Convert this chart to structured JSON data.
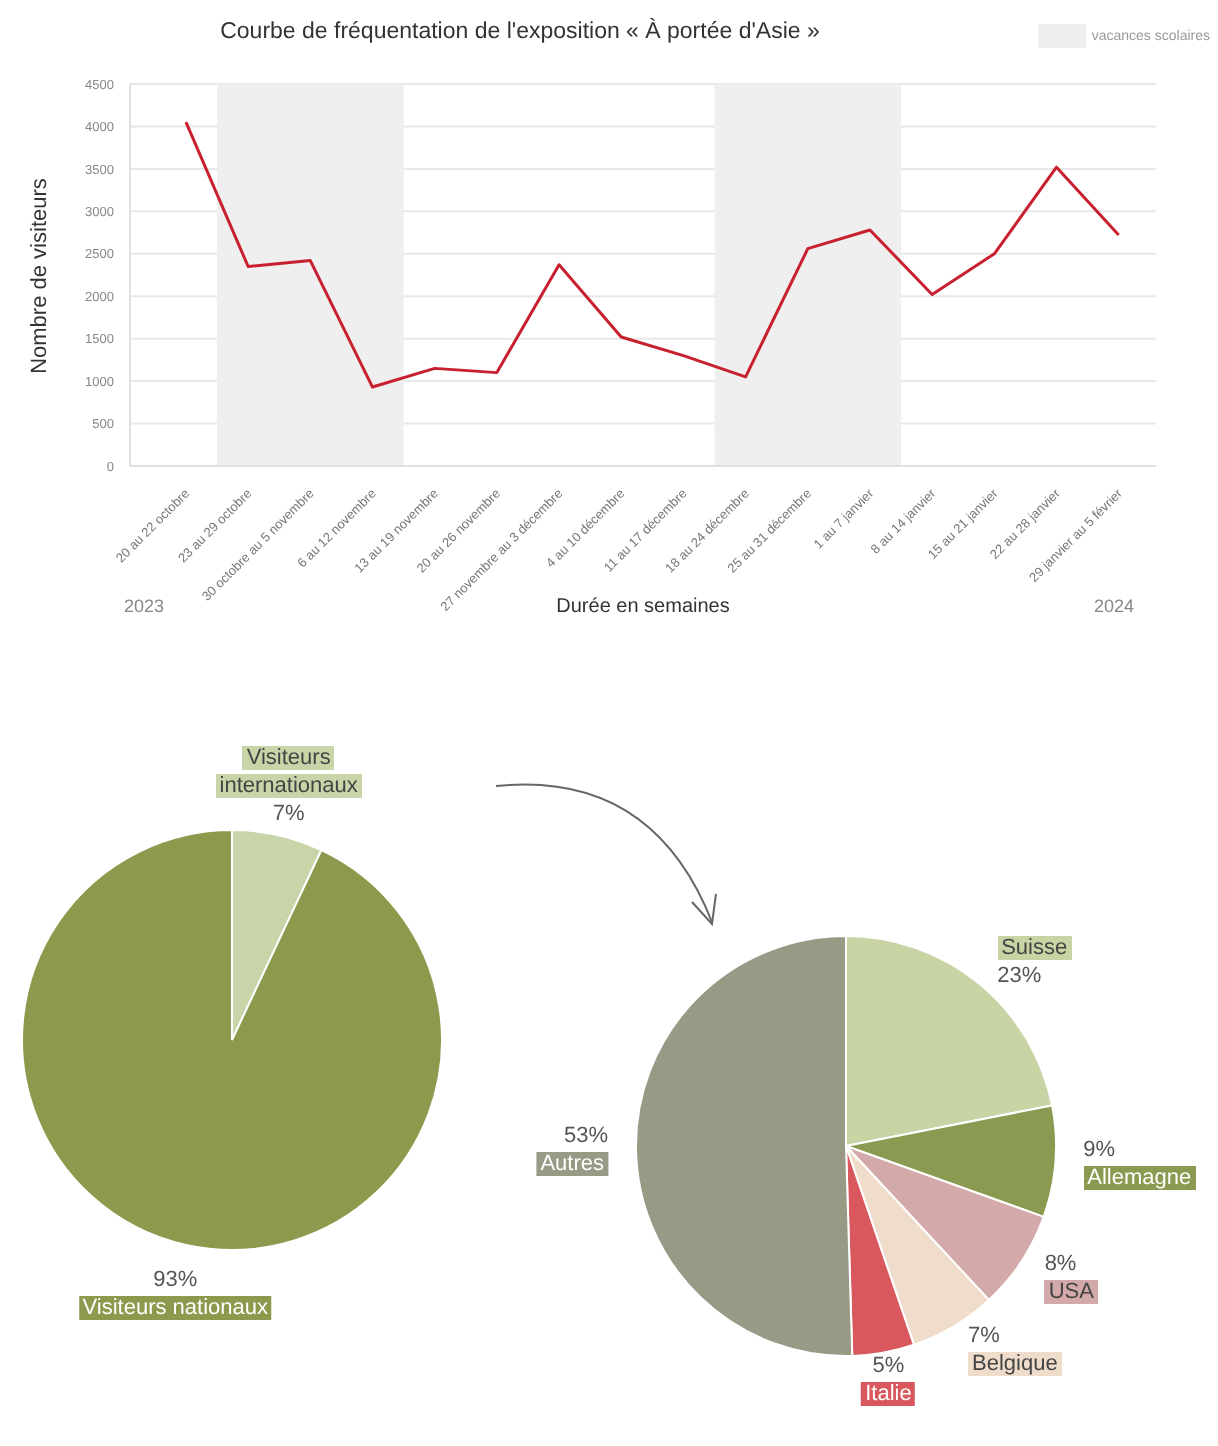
{
  "chart_data": [
    {
      "type": "line",
      "title": "Courbe de fréquentation de l'exposition « À portée d'Asie »",
      "xlabel": "Durée en semaines",
      "ylabel": "Nombre de visiteurs",
      "categories": [
        "20 au 22 octobre",
        "23 au 29 octobre",
        "30 octobre au 5 novembre",
        "6 au 12 novembre",
        "13 au 19 novembre",
        "20 au 26 novembre",
        "27 novembre au 3 décembre",
        "4 au 10 décembre",
        "11 au 17 décembre",
        "18 au 24 décembre",
        "25 au 31 décembre",
        "1 au 7 janvier",
        "8 au 14 janvier",
        "15 au 21 janvier",
        "22 au 28 janvier",
        "29 janvier au 5 février"
      ],
      "values": [
        4050,
        2350,
        2420,
        930,
        1150,
        1100,
        2370,
        1520,
        1300,
        1050,
        2560,
        2780,
        2020,
        2500,
        3520,
        2720
      ],
      "color": "#c8202f",
      "marker": "none",
      "ylim": [
        0,
        4500
      ],
      "yticks": [
        0,
        500,
        1000,
        1500,
        2000,
        2500,
        3000,
        3500,
        4000,
        4500
      ],
      "grid": "y",
      "bands": [
        {
          "axis": "x",
          "from": "23 au 29 octobre",
          "to": "6 au 12 novembre",
          "label": "vacances scolaires",
          "color": "#efefef"
        },
        {
          "axis": "x",
          "from": "18 au 24 décembre",
          "to": "1 au 7 janvier",
          "color": "#efefef"
        }
      ],
      "annotations": [
        "2023",
        "2024"
      ]
    },
    {
      "type": "pie",
      "categories": [
        "Visiteurs internationaux",
        "Visiteurs nationaux"
      ],
      "values": [
        7,
        93
      ],
      "colors": [
        "#c8d5a8",
        "#8c9a4e"
      ],
      "value_labels": [
        "7%",
        "93%"
      ]
    },
    {
      "type": "pie",
      "categories": [
        "Suisse",
        "Allemagne",
        "USA",
        "Belgique",
        "Italie",
        "Autres"
      ],
      "values": [
        23,
        9,
        8,
        7,
        5,
        53
      ],
      "colors": [
        "#c9d4a4",
        "#8a9a50",
        "#d4a9a9",
        "#f0dccb",
        "#d9585e",
        "#999a86"
      ],
      "value_labels": [
        "23%",
        "9%",
        "8%",
        "7%",
        "5%",
        "53%"
      ]
    }
  ]
}
